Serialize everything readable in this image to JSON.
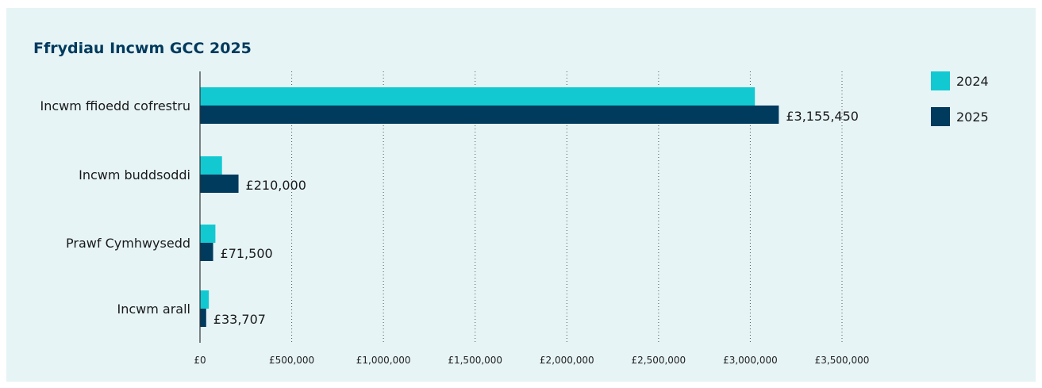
{
  "chart_data": {
    "type": "bar",
    "orientation": "horizontal",
    "title": "Ffrydiau Incwm GCC 2025",
    "categories": [
      "Incwm ffioedd cofrestru",
      "Incwm buddsoddi",
      "Prawf Cymhwysedd",
      "Incwm arall"
    ],
    "series": [
      {
        "name": "2024",
        "color": "#12c9d2",
        "values": [
          3025000,
          120000,
          84000,
          48000
        ]
      },
      {
        "name": "2025",
        "color": "#003a5d",
        "values": [
          3155450,
          210000,
          71500,
          33707
        ]
      }
    ],
    "data_labels": [
      "£3,155,450",
      "£210,000",
      "£71,500",
      "£33,707"
    ],
    "x_ticks": [
      {
        "value": 0,
        "label": "£0"
      },
      {
        "value": 500000,
        "label": "£500,000"
      },
      {
        "value": 1000000,
        "label": "£1,000,000"
      },
      {
        "value": 1500000,
        "label": "£1,500,000"
      },
      {
        "value": 2000000,
        "label": "£2,000,000"
      },
      {
        "value": 2500000,
        "label": "£2,500,000"
      },
      {
        "value": 3000000,
        "label": "£3,000,000"
      },
      {
        "value": 3500000,
        "label": "£3,500,000"
      }
    ],
    "xlim": [
      0,
      3500000
    ],
    "grid": "vertical-dotted",
    "legend_position": "right"
  }
}
